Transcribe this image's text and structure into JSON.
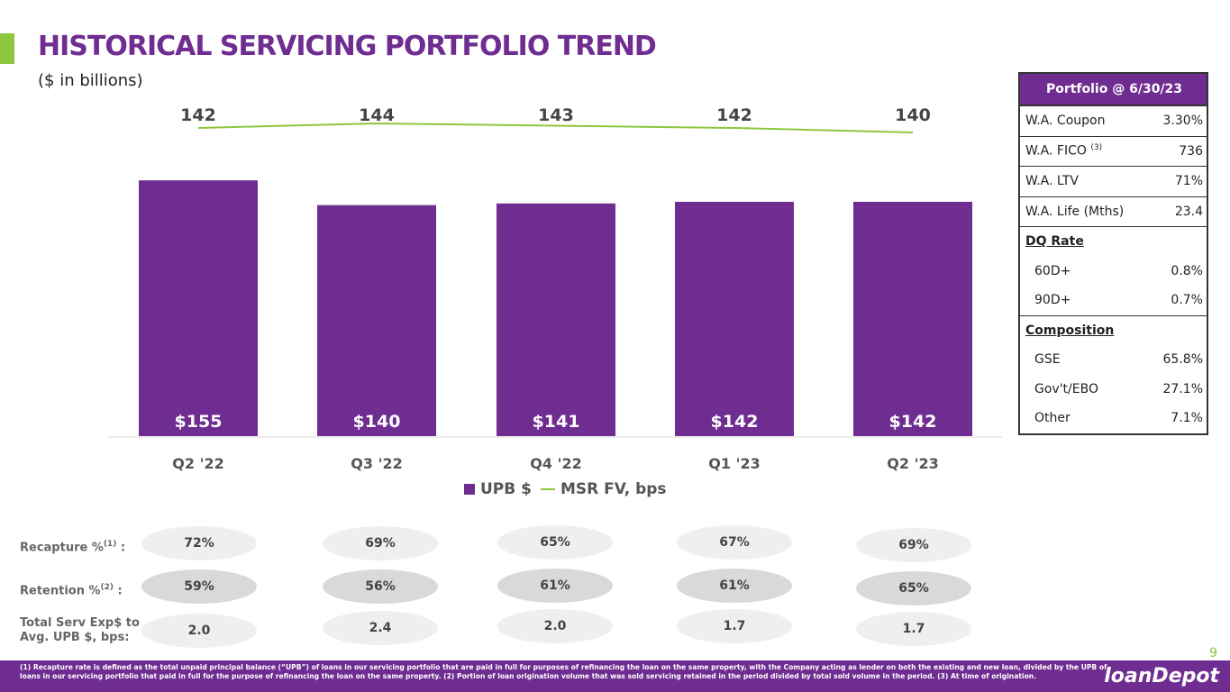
{
  "header": {
    "title": "HISTORICAL SERVICING PORTFOLIO TREND",
    "subtitle": "($ in billions)"
  },
  "colors": {
    "brand_purple": "#6f2c91",
    "brand_green": "#8dc63f"
  },
  "chart_data": {
    "type": "bar",
    "categories": [
      "Q2 '22",
      "Q3 '22",
      "Q4 '22",
      "Q1 '23",
      "Q2 '23"
    ],
    "series": [
      {
        "name": "UPB $",
        "type": "bar",
        "values": [
          155,
          140,
          141,
          142,
          142
        ],
        "labels": [
          "$155",
          "$140",
          "$141",
          "$142",
          "$142"
        ]
      },
      {
        "name": "MSR FV, bps",
        "type": "line",
        "values": [
          142,
          144,
          143,
          142,
          140
        ]
      }
    ],
    "legend": [
      "UPB $",
      "MSR FV, bps"
    ],
    "title": "",
    "ylim": [
      0,
      160
    ]
  },
  "portfolio_table": {
    "header": "Portfolio @ 6/30/23",
    "rows": [
      {
        "label": "W.A. Coupon",
        "value": "3.30%"
      },
      {
        "label": "W.A. FICO",
        "sup": "(3)",
        "value": "736"
      },
      {
        "label": "W.A. LTV",
        "value": "71%"
      },
      {
        "label": "W.A. Life (Mths)",
        "value": "23.4"
      }
    ],
    "dq_title": "DQ Rate",
    "dq_rows": [
      {
        "label": "60D+",
        "value": "0.8%"
      },
      {
        "label": "90D+",
        "value": "0.7%"
      }
    ],
    "comp_title": "Composition",
    "comp_rows": [
      {
        "label": "GSE",
        "value": "65.8%"
      },
      {
        "label": "Gov't/EBO",
        "value": "27.1%"
      },
      {
        "label": "Other",
        "value": "7.1%"
      }
    ]
  },
  "metrics": {
    "recapture": {
      "label": "Recapture %",
      "sup": "(1)",
      "suffix": " :",
      "values": [
        "72%",
        "69%",
        "65%",
        "67%",
        "69%"
      ]
    },
    "retention": {
      "label": "Retention %",
      "sup": "(2)",
      "suffix": " :",
      "values": [
        "59%",
        "56%",
        "61%",
        "61%",
        "65%"
      ]
    },
    "serv_exp": {
      "label_line1": "Total Serv Exp$ to",
      "label_line2": "Avg. UPB $, bps:",
      "values": [
        "2.0",
        "2.4",
        "2.0",
        "1.7",
        "1.7"
      ]
    }
  },
  "page_number": "9",
  "footnote": "(1) Recapture rate is defined as the total unpaid principal balance (“UPB”) of loans in our servicing portfolio that are paid in full for purposes of refinancing the loan on the same property, with the Company acting as lender on both the existing and new loan, divided by the UPB of loans in our servicing portfolio that paid in full for the purpose of refinancing the loan on the same property. (2) Portion of loan origination volume that was sold servicing retained in the period divided by total sold volume in the period. (3) At time of origination.",
  "logo": "loanDepot"
}
